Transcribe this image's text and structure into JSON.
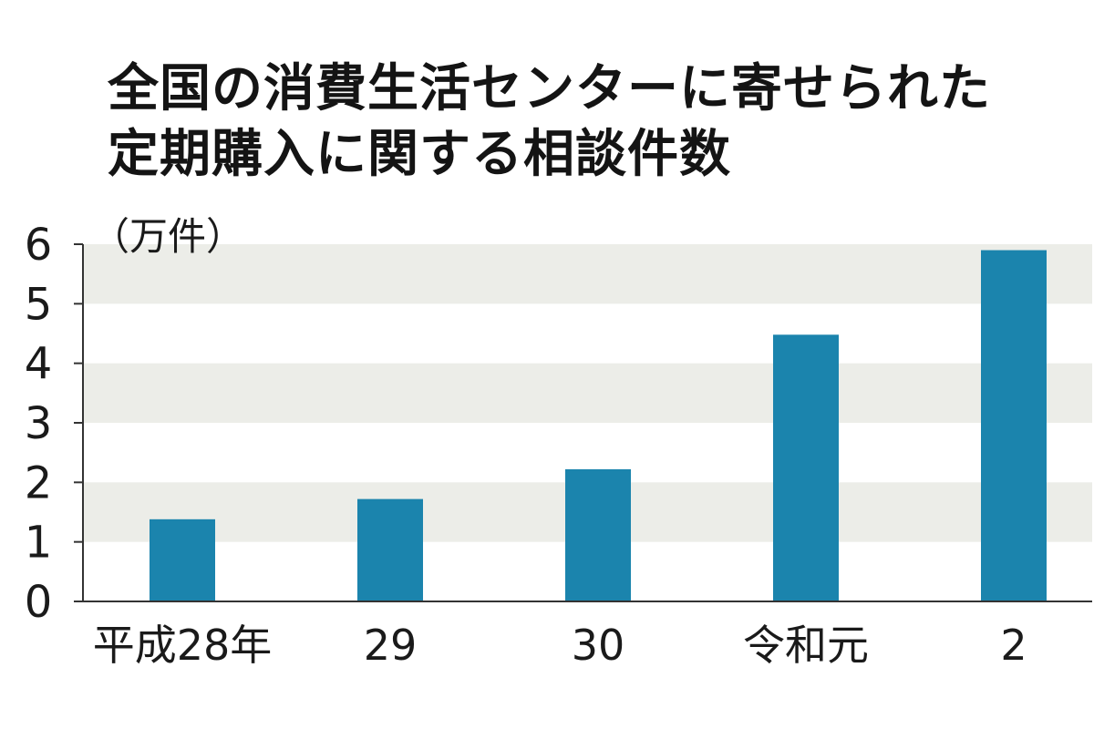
{
  "title_lines": [
    "全国の消費生活センターに寄せられた",
    "定期購入に関する相談件数"
  ],
  "colors": {
    "bar": "#1b84ad",
    "band": "#ecede8",
    "axis": "#333333",
    "text": "#1a1a1a"
  },
  "chart_data": {
    "type": "bar",
    "title": "全国の消費生活センターに寄せられた定期購入に関する相談件数",
    "unit_label": "（万件）",
    "categories": [
      "平成28年",
      "29",
      "30",
      "令和元",
      "2"
    ],
    "values": [
      1.38,
      1.72,
      2.22,
      4.48,
      5.9
    ],
    "ylim": [
      0,
      6
    ],
    "yticks": [
      "0",
      "1",
      "2",
      "3",
      "4",
      "5",
      "6"
    ],
    "grid": "alternating horizontal bands",
    "legend": "none"
  }
}
